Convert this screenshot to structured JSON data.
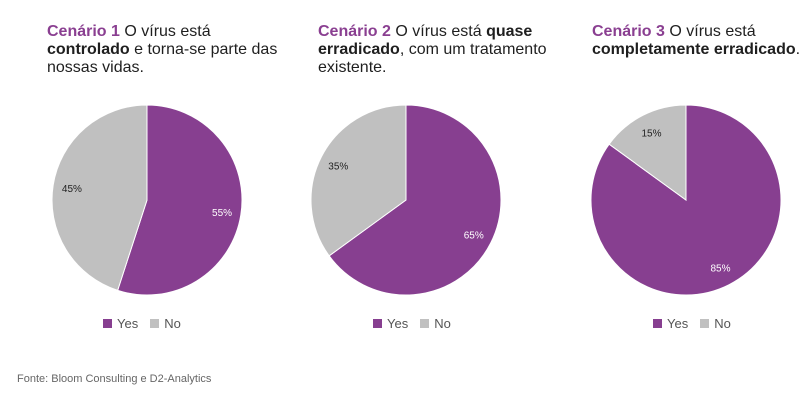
{
  "colors": {
    "yes": "#873f90",
    "no": "#c0c0c0"
  },
  "chart_data": [
    {
      "type": "pie",
      "title": {
        "lead": "Cenário 1",
        "pre": " O vírus está ",
        "strong": "controlado",
        "post": " e torna-se parte das nossas vidas."
      },
      "slices": [
        {
          "label": "Yes",
          "value": 55,
          "text": "55%"
        },
        {
          "label": "No",
          "value": 45,
          "text": "45%"
        }
      ],
      "legend": [
        "Yes",
        "No"
      ],
      "legend_position": "bottom"
    },
    {
      "type": "pie",
      "title": {
        "lead": "Cenário 2",
        "pre": " O vírus está ",
        "strong": "quase erradicado",
        "post": ", com um tratamento existente."
      },
      "slices": [
        {
          "label": "Yes",
          "value": 65,
          "text": "65%"
        },
        {
          "label": "No",
          "value": 35,
          "text": "35%"
        }
      ],
      "legend": [
        "Yes",
        "No"
      ],
      "legend_position": "bottom"
    },
    {
      "type": "pie",
      "title": {
        "lead": "Cenário 3",
        "pre": " O vírus está ",
        "strong": "completamente erradicado",
        "post": "."
      },
      "slices": [
        {
          "label": "Yes",
          "value": 85,
          "text": "85%"
        },
        {
          "label": "No",
          "value": 15,
          "text": "15%"
        }
      ],
      "legend": [
        "Yes",
        "No"
      ],
      "legend_position": "bottom"
    }
  ],
  "source": "Fonte: Bloom Consulting e D2-Analytics"
}
